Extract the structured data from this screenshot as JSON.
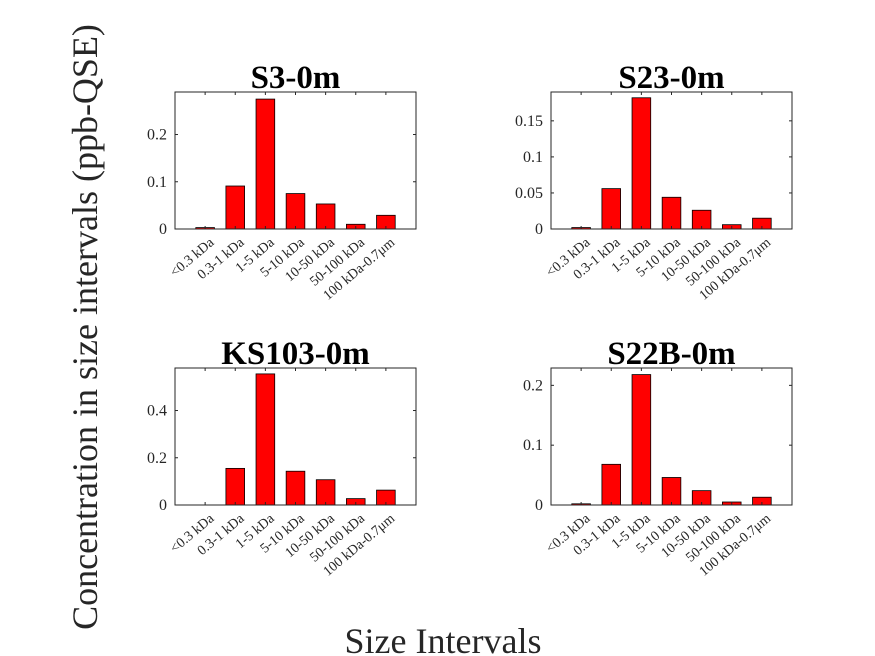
{
  "figure": {
    "ylabel": "Concentration in size intervals (ppb-QSE)",
    "xlabel": "Size Intervals"
  },
  "colors": {
    "bar_fill": "#ff0000",
    "bar_stroke": "#000000",
    "axis": "#262626"
  },
  "chart_data": [
    {
      "type": "bar",
      "title": "S3-0m",
      "categories": [
        "<0.3 kDa",
        "0.3-1 kDa",
        "1-5 kDa",
        "5-10 kDa",
        "10-50 kDa",
        "50-100 kDa",
        "100 kDa-0.7μm"
      ],
      "values": [
        0.003,
        0.091,
        0.275,
        0.075,
        0.053,
        0.01,
        0.029
      ],
      "ylim": [
        0,
        0.29
      ],
      "yticks": [
        0,
        0.1,
        0.2
      ],
      "ytick_labels": [
        "0",
        "0.1",
        "0.2"
      ]
    },
    {
      "type": "bar",
      "title": "S23-0m",
      "categories": [
        "<0.3 kDa",
        "0.3-1 kDa",
        "1-5 kDa",
        "5-10 kDa",
        "10-50 kDa",
        "50-100 kDa",
        "100 kDa-0.7μm"
      ],
      "values": [
        0.002,
        0.056,
        0.182,
        0.044,
        0.026,
        0.006,
        0.015
      ],
      "ylim": [
        0,
        0.19
      ],
      "yticks": [
        0,
        0.05,
        0.1,
        0.15
      ],
      "ytick_labels": [
        "0",
        "0.05",
        "0.1",
        "0.15"
      ]
    },
    {
      "type": "bar",
      "title": "KS103-0m",
      "categories": [
        "<0.3 kDa",
        "0.3-1 kDa",
        "1-5 kDa",
        "5-10 kDa",
        "10-50 kDa",
        "50-100 kDa",
        "100 kDa-0.7μm"
      ],
      "values": [
        0.0,
        0.155,
        0.555,
        0.143,
        0.107,
        0.027,
        0.063
      ],
      "ylim": [
        0,
        0.58
      ],
      "yticks": [
        0,
        0.2,
        0.4
      ],
      "ytick_labels": [
        "0",
        "0.2",
        "0.4"
      ]
    },
    {
      "type": "bar",
      "title": "S22B-0m",
      "categories": [
        "<0.3 kDa",
        "0.3-1 kDa",
        "1-5 kDa",
        "5-10 kDa",
        "10-50 kDa",
        "50-100 kDa",
        "100 kDa-0.7μm"
      ],
      "values": [
        0.002,
        0.068,
        0.218,
        0.046,
        0.024,
        0.005,
        0.013
      ],
      "ylim": [
        0,
        0.229
      ],
      "yticks": [
        0,
        0.1,
        0.2
      ],
      "ytick_labels": [
        "0",
        "0.1",
        "0.2"
      ]
    }
  ]
}
